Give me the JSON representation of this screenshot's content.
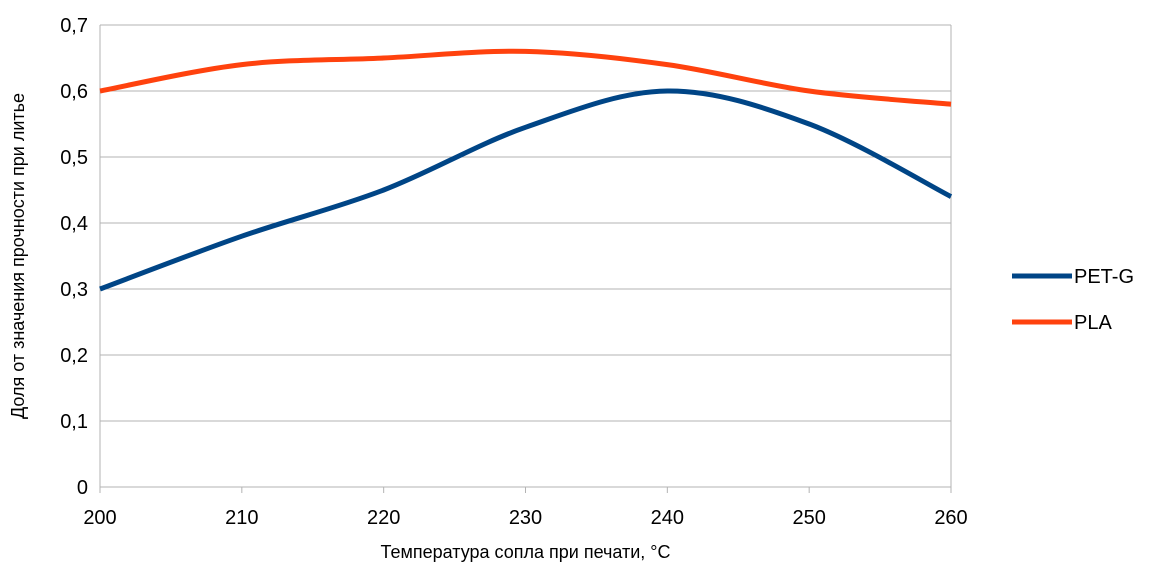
{
  "chart_data": {
    "type": "line",
    "title": "",
    "xlabel": "Температура сопла при печати, °C",
    "ylabel": "Доля от значения прочности при литье",
    "x": [
      200,
      210,
      220,
      230,
      240,
      250,
      260
    ],
    "xlim": [
      200,
      260
    ],
    "ylim": [
      0,
      0.7
    ],
    "x_ticks": [
      200,
      210,
      220,
      230,
      240,
      250,
      260
    ],
    "y_ticks": [
      0,
      0.1,
      0.2,
      0.3,
      0.4,
      0.5,
      0.6,
      0.7
    ],
    "x_tick_labels": [
      "200",
      "210",
      "220",
      "230",
      "240",
      "250",
      "260"
    ],
    "y_tick_labels": [
      "0",
      "0,1",
      "0,2",
      "0,3",
      "0,4",
      "0,5",
      "0,6",
      "0,7"
    ],
    "grid": "horizontal",
    "smooth": true,
    "legend_position": "right",
    "series": [
      {
        "name": "PET-G",
        "color": "#004586",
        "values": [
          0.3,
          0.38,
          0.45,
          0.545,
          0.6,
          0.55,
          0.44
        ]
      },
      {
        "name": "PLA",
        "color": "#ff420e",
        "values": [
          0.6,
          0.64,
          0.65,
          0.66,
          0.64,
          0.6,
          0.58
        ]
      }
    ]
  }
}
